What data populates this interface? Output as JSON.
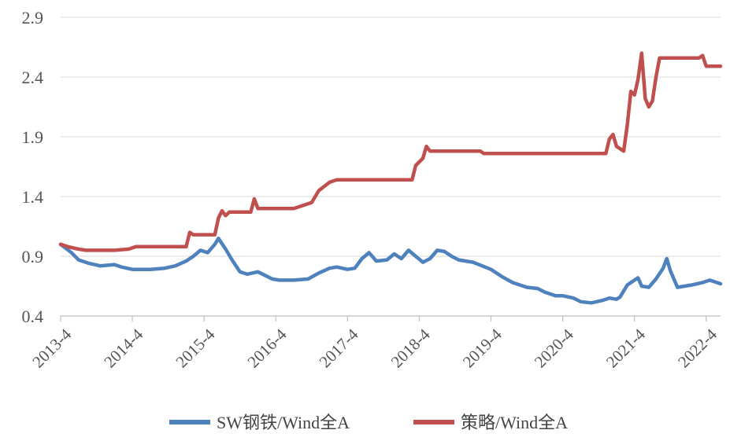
{
  "chart_data": {
    "type": "line",
    "title": "",
    "xlabel": "",
    "ylabel": "",
    "ylim": [
      0.4,
      2.9
    ],
    "yticks": [
      0.4,
      0.9,
      1.4,
      1.9,
      2.4,
      2.9
    ],
    "ytick_labels": [
      "0.4",
      "0.9",
      "1.4",
      "1.9",
      "2.4",
      "2.9"
    ],
    "xlim": [
      2013.25,
      2022.45
    ],
    "xticks": [
      2013.25,
      2014.25,
      2015.25,
      2016.25,
      2017.25,
      2018.25,
      2019.25,
      2020.25,
      2021.25,
      2022.25
    ],
    "xtick_labels": [
      "2013-4",
      "2014-4",
      "2015-4",
      "2016-4",
      "2017-4",
      "2018-4",
      "2019-4",
      "2020-4",
      "2021-4",
      "2022-4"
    ],
    "grid": true,
    "legend_position": "bottom",
    "series": [
      {
        "name": "SW钢铁/Wind全A",
        "color": "#4f81bd",
        "points": [
          [
            2013.25,
            1.0
          ],
          [
            2013.4,
            0.93
          ],
          [
            2013.5,
            0.87
          ],
          [
            2013.65,
            0.84
          ],
          [
            2013.8,
            0.82
          ],
          [
            2014.0,
            0.83
          ],
          [
            2014.1,
            0.81
          ],
          [
            2014.25,
            0.79
          ],
          [
            2014.5,
            0.79
          ],
          [
            2014.7,
            0.8
          ],
          [
            2014.85,
            0.82
          ],
          [
            2015.0,
            0.86
          ],
          [
            2015.1,
            0.9
          ],
          [
            2015.2,
            0.95
          ],
          [
            2015.3,
            0.93
          ],
          [
            2015.4,
            1.0
          ],
          [
            2015.45,
            1.05
          ],
          [
            2015.55,
            0.96
          ],
          [
            2015.65,
            0.86
          ],
          [
            2015.75,
            0.77
          ],
          [
            2015.85,
            0.75
          ],
          [
            2016.0,
            0.77
          ],
          [
            2016.1,
            0.74
          ],
          [
            2016.2,
            0.71
          ],
          [
            2016.3,
            0.7
          ],
          [
            2016.5,
            0.7
          ],
          [
            2016.7,
            0.71
          ],
          [
            2016.85,
            0.76
          ],
          [
            2017.0,
            0.8
          ],
          [
            2017.1,
            0.81
          ],
          [
            2017.25,
            0.79
          ],
          [
            2017.35,
            0.8
          ],
          [
            2017.45,
            0.88
          ],
          [
            2017.55,
            0.93
          ],
          [
            2017.65,
            0.86
          ],
          [
            2017.8,
            0.87
          ],
          [
            2017.9,
            0.92
          ],
          [
            2018.0,
            0.88
          ],
          [
            2018.1,
            0.95
          ],
          [
            2018.2,
            0.9
          ],
          [
            2018.3,
            0.85
          ],
          [
            2018.4,
            0.88
          ],
          [
            2018.5,
            0.95
          ],
          [
            2018.6,
            0.94
          ],
          [
            2018.7,
            0.9
          ],
          [
            2018.8,
            0.87
          ],
          [
            2019.0,
            0.85
          ],
          [
            2019.25,
            0.79
          ],
          [
            2019.4,
            0.73
          ],
          [
            2019.55,
            0.68
          ],
          [
            2019.75,
            0.64
          ],
          [
            2019.9,
            0.63
          ],
          [
            2020.0,
            0.6
          ],
          [
            2020.15,
            0.57
          ],
          [
            2020.25,
            0.57
          ],
          [
            2020.4,
            0.55
          ],
          [
            2020.5,
            0.52
          ],
          [
            2020.65,
            0.51
          ],
          [
            2020.8,
            0.53
          ],
          [
            2020.9,
            0.55
          ],
          [
            2021.0,
            0.54
          ],
          [
            2021.05,
            0.56
          ],
          [
            2021.15,
            0.66
          ],
          [
            2021.25,
            0.7
          ],
          [
            2021.3,
            0.72
          ],
          [
            2021.35,
            0.65
          ],
          [
            2021.45,
            0.64
          ],
          [
            2021.55,
            0.71
          ],
          [
            2021.65,
            0.8
          ],
          [
            2021.7,
            0.88
          ],
          [
            2021.75,
            0.78
          ],
          [
            2021.85,
            0.64
          ],
          [
            2021.95,
            0.65
          ],
          [
            2022.05,
            0.66
          ],
          [
            2022.2,
            0.68
          ],
          [
            2022.3,
            0.7
          ],
          [
            2022.45,
            0.67
          ]
        ]
      },
      {
        "name": "策略/Wind全A",
        "color": "#c0504d",
        "points": [
          [
            2013.25,
            1.0
          ],
          [
            2013.35,
            0.98
          ],
          [
            2013.5,
            0.96
          ],
          [
            2013.6,
            0.95
          ],
          [
            2014.0,
            0.95
          ],
          [
            2014.2,
            0.96
          ],
          [
            2014.3,
            0.98
          ],
          [
            2015.0,
            0.98
          ],
          [
            2015.05,
            1.1
          ],
          [
            2015.1,
            1.08
          ],
          [
            2015.4,
            1.08
          ],
          [
            2015.45,
            1.22
          ],
          [
            2015.5,
            1.28
          ],
          [
            2015.55,
            1.24
          ],
          [
            2015.6,
            1.27
          ],
          [
            2015.9,
            1.27
          ],
          [
            2015.95,
            1.38
          ],
          [
            2016.0,
            1.3
          ],
          [
            2016.5,
            1.3
          ],
          [
            2016.6,
            1.32
          ],
          [
            2016.75,
            1.35
          ],
          [
            2016.85,
            1.45
          ],
          [
            2017.0,
            1.52
          ],
          [
            2017.1,
            1.54
          ],
          [
            2018.15,
            1.54
          ],
          [
            2018.2,
            1.66
          ],
          [
            2018.3,
            1.72
          ],
          [
            2018.35,
            1.82
          ],
          [
            2018.4,
            1.78
          ],
          [
            2019.1,
            1.78
          ],
          [
            2019.15,
            1.76
          ],
          [
            2020.6,
            1.76
          ],
          [
            2020.85,
            1.76
          ],
          [
            2020.9,
            1.88
          ],
          [
            2020.95,
            1.92
          ],
          [
            2021.0,
            1.82
          ],
          [
            2021.05,
            1.8
          ],
          [
            2021.1,
            1.78
          ],
          [
            2021.15,
            2.0
          ],
          [
            2021.2,
            2.28
          ],
          [
            2021.25,
            2.25
          ],
          [
            2021.3,
            2.38
          ],
          [
            2021.35,
            2.6
          ],
          [
            2021.4,
            2.22
          ],
          [
            2021.45,
            2.15
          ],
          [
            2021.5,
            2.2
          ],
          [
            2021.55,
            2.4
          ],
          [
            2021.6,
            2.56
          ],
          [
            2022.0,
            2.56
          ],
          [
            2022.15,
            2.56
          ],
          [
            2022.2,
            2.58
          ],
          [
            2022.25,
            2.49
          ],
          [
            2022.45,
            2.49
          ]
        ]
      }
    ]
  }
}
